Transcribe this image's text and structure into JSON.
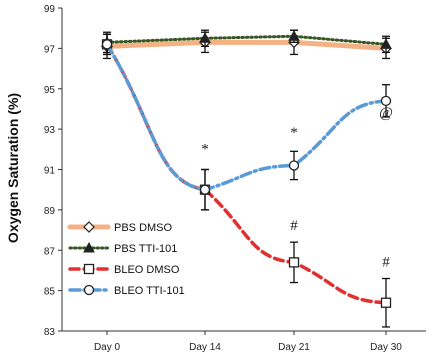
{
  "chart_data": {
    "type": "line",
    "ylabel": "Oxygen Saturation (%)",
    "xlabel": "",
    "categories": [
      "Day 0",
      "Day 14",
      "Day 21",
      "Day 30"
    ],
    "ylim": [
      83,
      99
    ],
    "yticks": [
      83,
      85,
      87,
      89,
      91,
      93,
      95,
      97,
      99
    ],
    "grid": false,
    "legend_position": "bottom-left",
    "series": [
      {
        "name": "PBS DMSO",
        "values": [
          97.1,
          97.3,
          97.3,
          97.0
        ],
        "errors": [
          0.6,
          0.5,
          0.6,
          0.5
        ],
        "color": "#f4b183",
        "line_style": "solid",
        "marker": "diamond"
      },
      {
        "name": "PBS TTI-101",
        "values": [
          97.3,
          97.5,
          97.6,
          97.2
        ],
        "errors": [
          0.5,
          0.4,
          0.3,
          0.4
        ],
        "color": "#375623",
        "line_style": "dotted",
        "marker": "triangle"
      },
      {
        "name": "BLEO DMSO",
        "values": [
          97.2,
          90.0,
          86.4,
          84.4
        ],
        "errors": [
          0.5,
          1.0,
          1.0,
          1.2
        ],
        "color": "#e03030",
        "line_style": "dashed",
        "marker": "square"
      },
      {
        "name": "BLEO TTI-101",
        "values": [
          97.2,
          90.0,
          91.2,
          94.4
        ],
        "errors": [
          0.5,
          1.0,
          0.7,
          0.8
        ],
        "color": "#5b9bd5",
        "line_style": "dashdot",
        "marker": "circle"
      }
    ],
    "annotations": [
      {
        "text": "*",
        "category": "Day 14",
        "y": 91.8
      },
      {
        "text": "*",
        "category": "Day 21",
        "y": 92.6
      },
      {
        "text": "#",
        "category": "Day 21",
        "y": 88.0
      },
      {
        "text": "@",
        "category": "Day 30",
        "y": 93.6
      },
      {
        "text": "#",
        "category": "Day 30",
        "y": 86.2
      }
    ]
  }
}
